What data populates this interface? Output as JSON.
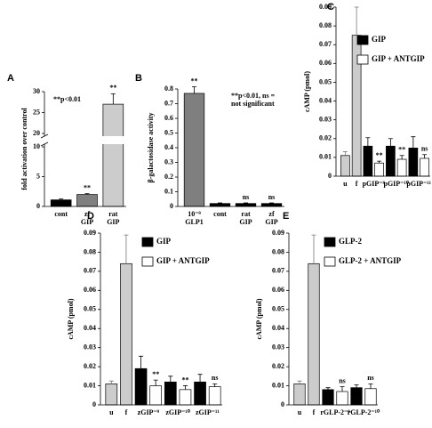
{
  "chart_data": [
    {
      "type": "bar",
      "panel": "A",
      "ylabel": "fold activation over control",
      "categories": [
        "cont",
        "zf\nGIP",
        "rat\nGIP"
      ],
      "series": [
        {
          "colors": [
            "#000000",
            "#808080",
            "#cccccc"
          ],
          "values": [
            1.1,
            2.0,
            27
          ],
          "errors": [
            0.15,
            0.15,
            2.5
          ],
          "annotations": [
            null,
            "**",
            "**"
          ]
        }
      ],
      "ylim": [
        0,
        30
      ],
      "yticks": [
        0,
        5,
        10,
        20,
        25,
        30
      ],
      "axis_break": [
        10,
        20
      ],
      "note": "**p<0.01"
    },
    {
      "type": "bar",
      "panel": "B",
      "ylabel": "β-galactosidase activity",
      "categories": [
        "10⁻⁹\nGLP1",
        "cont",
        "rat\nGIP",
        "zf\nGIP"
      ],
      "series": [
        {
          "colors": [
            "#7f7f7f",
            "#000000",
            "#000000",
            "#000000"
          ],
          "values": [
            0.77,
            0.02,
            0.02,
            0.02
          ],
          "errors": [
            0.045,
            0.004,
            0.004,
            0.004
          ],
          "annotations": [
            "**",
            null,
            "ns",
            "ns"
          ]
        }
      ],
      "ylim": [
        0,
        0.8
      ],
      "yticks": [
        0,
        0.1,
        0.2,
        0.3,
        0.4,
        0.5,
        0.6,
        0.7,
        0.8
      ],
      "note": "**p<0.01, ns =\nnot significant"
    },
    {
      "type": "bar",
      "panel": "C",
      "ylabel": "cAMP (pmol)",
      "categories": [
        "u",
        "f",
        "pGIP⁻⁹",
        "pGIP⁻¹⁰",
        "pGIP⁻¹¹"
      ],
      "series": [
        {
          "color": "#cccccc",
          "values": [
            0.011,
            0.075,
            null,
            null,
            null
          ],
          "errors": [
            0.002,
            0.015,
            null,
            null,
            null
          ]
        },
        {
          "name": "GIP",
          "color": "#000000",
          "values": [
            null,
            null,
            0.016,
            0.016,
            0.015
          ],
          "errors": [
            null,
            null,
            0.0045,
            0.004,
            0.006
          ]
        },
        {
          "name": "GIP + ANTGIP",
          "color": "#ffffff",
          "values": [
            null,
            null,
            0.007,
            0.009,
            0.0095
          ],
          "errors": [
            null,
            null,
            0.001,
            0.002,
            0.002
          ],
          "annotations": [
            null,
            null,
            "**",
            "**",
            "ns"
          ]
        }
      ],
      "ylim": [
        0,
        0.09
      ],
      "yticks": [
        0,
        0.01,
        0.02,
        0.03,
        0.04,
        0.05,
        0.06,
        0.07,
        0.08,
        0.09
      ]
    },
    {
      "type": "bar",
      "panel": "D",
      "ylabel": "cAMP (pmol)",
      "categories": [
        "u",
        "f",
        "zGIP⁻⁹",
        "zGIP⁻¹⁰",
        "zGIP⁻¹¹"
      ],
      "series": [
        {
          "color": "#cccccc",
          "values": [
            0.011,
            0.074,
            null,
            null,
            null
          ],
          "errors": [
            0.0015,
            0.015,
            null,
            null,
            null
          ]
        },
        {
          "name": "GIP",
          "color": "#000000",
          "values": [
            null,
            null,
            0.019,
            0.012,
            0.012
          ],
          "errors": [
            null,
            null,
            0.0065,
            0.003,
            0.004
          ]
        },
        {
          "name": "GIP + ANTGIP",
          "color": "#ffffff",
          "values": [
            null,
            null,
            0.01,
            0.008,
            0.0095
          ],
          "errors": [
            null,
            null,
            0.003,
            0.002,
            0.0015
          ],
          "annotations": [
            null,
            null,
            "**",
            "**",
            "ns"
          ]
        }
      ],
      "ylim": [
        0,
        0.09
      ],
      "yticks": [
        0,
        0.01,
        0.02,
        0.03,
        0.04,
        0.05,
        0.06,
        0.07,
        0.08,
        0.09
      ]
    },
    {
      "type": "bar",
      "panel": "E",
      "ylabel": "cAMP (pmol)",
      "categories": [
        "u",
        "f",
        "rGLP-2⁻⁹",
        "rGLP-2⁻¹⁰"
      ],
      "series": [
        {
          "color": "#cccccc",
          "values": [
            0.011,
            0.074,
            null,
            null
          ],
          "errors": [
            0.0015,
            0.015,
            null,
            null
          ]
        },
        {
          "name": "GLP-2",
          "color": "#000000",
          "values": [
            null,
            null,
            0.008,
            0.009
          ],
          "errors": [
            null,
            null,
            0.001,
            0.0015
          ]
        },
        {
          "name": "GLP-2 + ANTGIP",
          "color": "#ffffff",
          "values": [
            null,
            null,
            0.007,
            0.0085
          ],
          "errors": [
            null,
            null,
            0.0025,
            0.0025
          ],
          "annotations": [
            null,
            null,
            "ns",
            "ns"
          ]
        }
      ],
      "ylim": [
        0,
        0.09
      ],
      "yticks": [
        0,
        0.01,
        0.02,
        0.03,
        0.04,
        0.05,
        0.06,
        0.07,
        0.08,
        0.09
      ]
    }
  ]
}
